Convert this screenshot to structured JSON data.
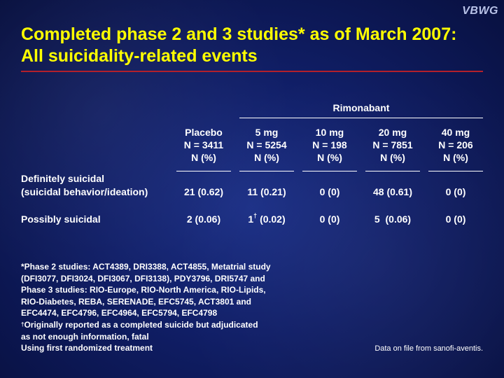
{
  "logo": "VBWG",
  "title": "Completed phase 2 and 3 studies* as of March 2007: All suicidality-related events",
  "group_label": "Rimonabant",
  "columns": [
    {
      "name": "Placebo",
      "n": "N = 3411",
      "unit": "N (%)"
    },
    {
      "name": "5 mg",
      "n": "N = 5254",
      "unit": "N (%)"
    },
    {
      "name": "10 mg",
      "n": "N = 198",
      "unit": "N (%)"
    },
    {
      "name": "20 mg",
      "n": "N = 7851",
      "unit": "N (%)"
    },
    {
      "name": "40 mg",
      "n": "N = 206",
      "unit": "N (%)"
    }
  ],
  "rows": [
    {
      "label_line1": "Definitely suicidal",
      "label_line2": "(suicidal behavior/ideation)",
      "cells": [
        {
          "count": "21",
          "sup": "",
          "pct": "(0.62)"
        },
        {
          "count": "11",
          "sup": "",
          "pct": "(0.21)"
        },
        {
          "count": "0",
          "sup": "",
          "pct": "(0)"
        },
        {
          "count": "48",
          "sup": "",
          "pct": "(0.61)"
        },
        {
          "count": "0",
          "sup": "",
          "pct": "(0)"
        }
      ]
    },
    {
      "label_line1": "Possibly suicidal",
      "label_line2": "",
      "cells": [
        {
          "count": "2",
          "sup": "",
          "pct": "(0.06)"
        },
        {
          "count": "1",
          "sup": "†",
          "pct": "(0.02)"
        },
        {
          "count": "0",
          "sup": "",
          "pct": "(0)"
        },
        {
          "count": "5",
          "sup": "",
          "pct": "(0.06)"
        },
        {
          "count": "0",
          "sup": "",
          "pct": "(0)"
        }
      ]
    }
  ],
  "footnotes": {
    "phase_lines": [
      "*Phase 2 studies: ACT4389, DRI3388, ACT4855, Metatrial study",
      "(DFI3077, DFI3024, DFI3067, DFI3138), PDY3796, DRI5747 and",
      "Phase 3 studies: RIO-Europe, RIO-North America, RIO-Lipids,",
      "RIO-Diabetes, REBA, SERENADE, EFC5745, ACT3801 and",
      "EFC4474, EFC4796, EFC4964, EFC5794, EFC4798"
    ],
    "dagger_mark": "†",
    "dagger_line1": "Originally reported as a completed suicide but adjudicated",
    "dagger_line2": "as not enough information, fatal",
    "last_line": "Using first randomized treatment"
  },
  "source": "Data on file from sanofi-aventis."
}
